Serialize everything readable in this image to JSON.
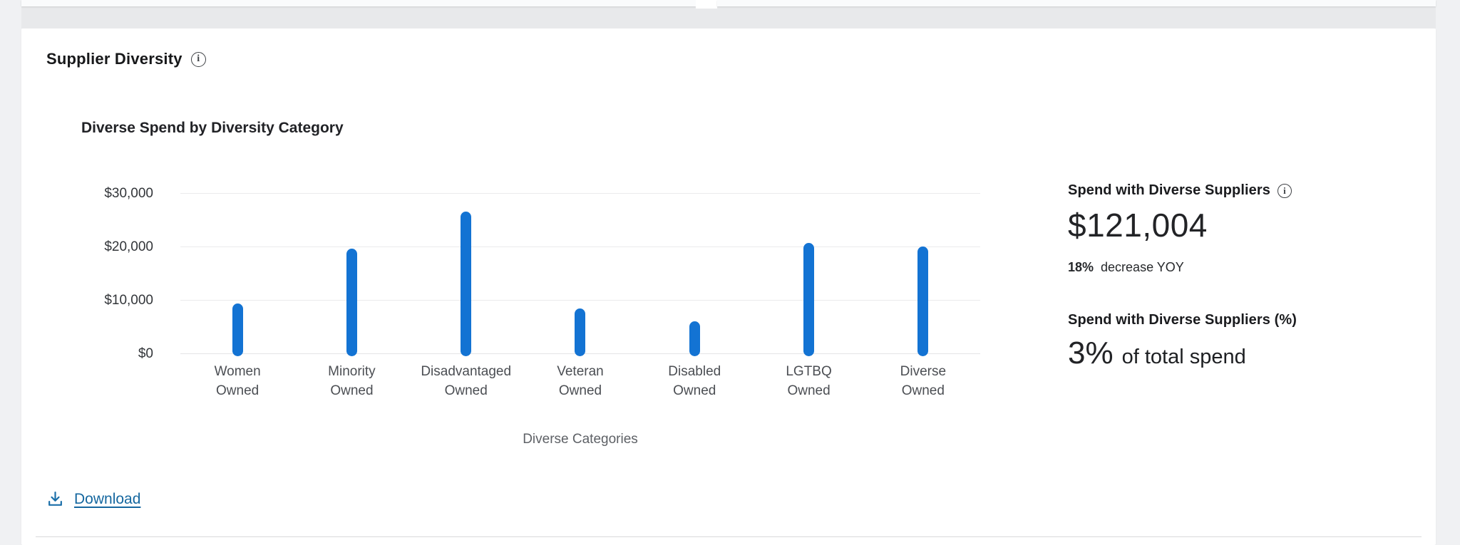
{
  "panel": {
    "title": "Supplier Diversity"
  },
  "chart_data": {
    "type": "bar",
    "title": "Diverse Spend by Diversity Category",
    "categories": [
      "Women Owned",
      "Minority Owned",
      "Disadvantaged Owned",
      "Veteran Owned",
      "Disabled Owned",
      "LGTBQ Owned",
      "Diverse Owned"
    ],
    "values": [
      9900,
      20100,
      27000,
      8900,
      6500,
      21200,
      20500
    ],
    "xlabel": "Diverse Categories",
    "ylabel": "",
    "ylim": [
      0,
      30000
    ],
    "y_ticks": [
      {
        "value": 0,
        "label": "$0"
      },
      {
        "value": 10000,
        "label": "$10,000"
      },
      {
        "value": 20000,
        "label": "$20,000"
      },
      {
        "value": 30000,
        "label": "$30,000"
      }
    ],
    "grid": true,
    "legend": false,
    "bar_color": "#1373d3"
  },
  "stats": {
    "spend": {
      "heading": "Spend with Diverse Suppliers",
      "value": "$121,004",
      "change_percent": "18%",
      "change_text": "decrease YOY"
    },
    "percent": {
      "heading": "Spend with Diverse Suppliers (%)",
      "value": "3%",
      "caption": "of total spend"
    }
  },
  "actions": {
    "download_label": "Download"
  },
  "icons": {
    "info": "info-icon",
    "download": "download-icon"
  },
  "colors": {
    "bar": "#1373d3",
    "link": "#15679f",
    "gridline": "#ebebec"
  }
}
